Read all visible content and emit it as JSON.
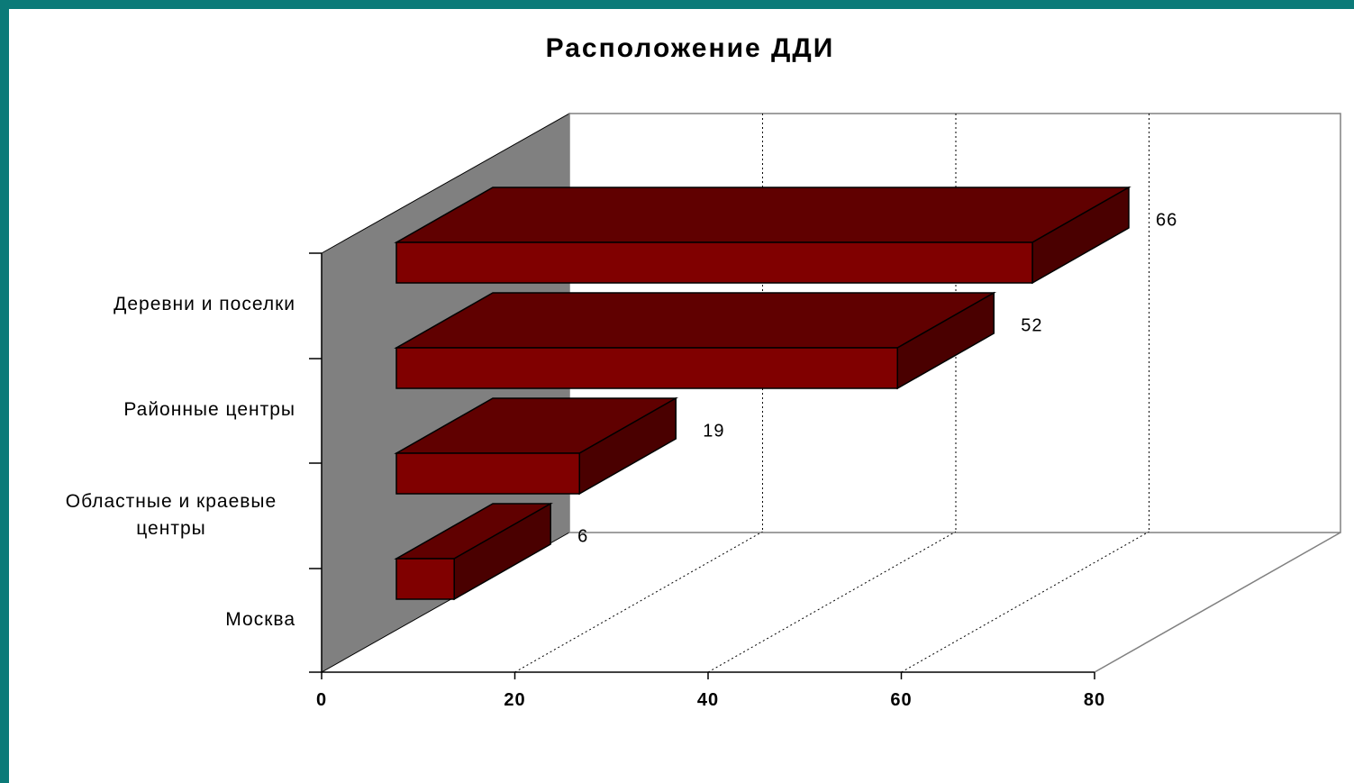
{
  "chart_data": {
    "type": "bar",
    "orientation": "horizontal",
    "style": "3d",
    "title": "Расположение ДДИ",
    "categories": [
      "Москва",
      "Областные и краевые центры",
      "Районные центры",
      "Деревни и поселки"
    ],
    "category_lines": [
      [
        "Москва"
      ],
      [
        "Областные и краевые",
        "центры"
      ],
      [
        "Районные центры"
      ],
      [
        "Деревни и поселки"
      ]
    ],
    "values": [
      6,
      19,
      52,
      66
    ],
    "value_labels": [
      "6",
      "19",
      "52",
      "66"
    ],
    "xlim": [
      0,
      80
    ],
    "xticks": [
      0,
      20,
      40,
      60,
      80
    ],
    "tick_labels": [
      "0",
      "20",
      "40",
      "60",
      "80"
    ],
    "grid": true,
    "legend": "none",
    "colors": {
      "bar_front": "#800000",
      "bar_top": "#600000",
      "bar_side": "#4a0000",
      "side_wall": "#808080",
      "background": "#ffffff",
      "border": "#0b7a78"
    }
  }
}
